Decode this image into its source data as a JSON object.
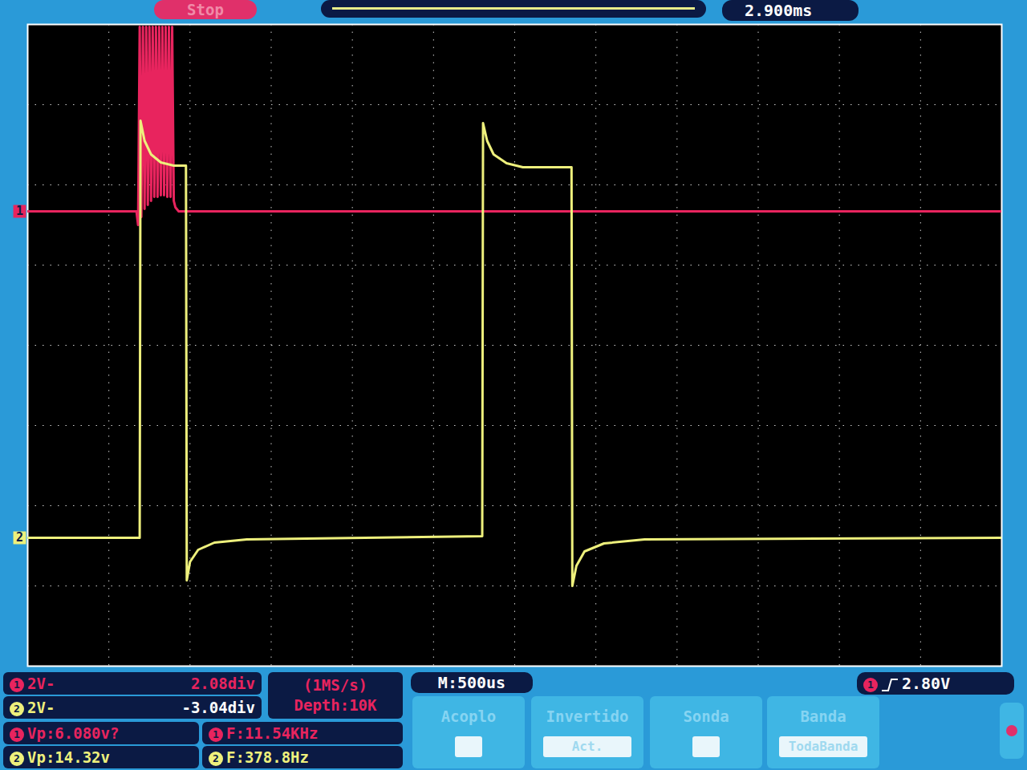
{
  "chart_data": {
    "type": "line",
    "xlim": [
      0,
      6
    ],
    "xticks": [
      0,
      0.5,
      1,
      1.5,
      2,
      2.5,
      3,
      3.5,
      4,
      4.5,
      5,
      5.5,
      6
    ],
    "ylim": [
      -4,
      4
    ],
    "yticks": [
      -4,
      -3,
      -2,
      -1,
      0,
      1,
      2,
      3,
      4
    ],
    "grid": true,
    "tick_labels": false,
    "series": [
      {
        "name": "1",
        "color": "#e8245e",
        "x": [
          0,
          0.67,
          0.68,
          0.69,
          0.7,
          0.71,
          0.72,
          0.73,
          0.74,
          0.75,
          0.76,
          0.77,
          0.78,
          0.79,
          0.8,
          0.81,
          0.82,
          0.83,
          0.84,
          0.85,
          0.86,
          0.87,
          0.88,
          0.89,
          0.9,
          0.91,
          0.93,
          6
        ],
        "values": [
          1.67,
          1.67,
          1.5,
          3.97,
          1.6,
          3.97,
          1.7,
          3.97,
          1.75,
          3.97,
          1.8,
          3.97,
          1.85,
          3.97,
          1.85,
          3.97,
          1.87,
          3.97,
          1.87,
          3.97,
          1.85,
          3.97,
          1.85,
          3.97,
          1.8,
          1.72,
          1.67,
          1.67
        ]
      },
      {
        "name": "2",
        "color": "#eef07c",
        "x": [
          0,
          0.69,
          0.695,
          0.72,
          0.76,
          0.82,
          0.9,
          0.975,
          0.98,
          1.0,
          1.05,
          1.15,
          1.35,
          2.8,
          2.805,
          2.83,
          2.87,
          2.95,
          3.05,
          3.35,
          3.355,
          3.38,
          3.43,
          3.55,
          3.8,
          6
        ],
        "values": [
          -2.4,
          -2.4,
          2.8,
          2.55,
          2.38,
          2.28,
          2.24,
          2.24,
          -2.93,
          -2.7,
          -2.55,
          -2.46,
          -2.42,
          -2.38,
          2.77,
          2.55,
          2.38,
          2.27,
          2.22,
          2.22,
          -3.0,
          -2.75,
          -2.57,
          -2.47,
          -2.42,
          -2.4
        ]
      }
    ]
  },
  "screen": {
    "status": "Stop",
    "time_offset": "2.900ms",
    "timebase": "M:500us",
    "sample_rate": "(1MS/s)",
    "depth": "Depth:10K",
    "trigger_level": "2.80V",
    "channels": [
      {
        "scale": "2V-",
        "offset": "2.08div",
        "vp": "Vp:6.080v?",
        "freq": "F:11.54KHz"
      },
      {
        "scale": "2V-",
        "offset": "-3.04div",
        "vp": "Vp:14.32v",
        "freq": "F:378.8Hz"
      }
    ],
    "menu": [
      {
        "title": "Acoplo"
      },
      {
        "title": "Invertido",
        "value": "Act."
      },
      {
        "title": "Sonda"
      },
      {
        "title": "Banda",
        "value": "TodaBanda"
      }
    ]
  }
}
